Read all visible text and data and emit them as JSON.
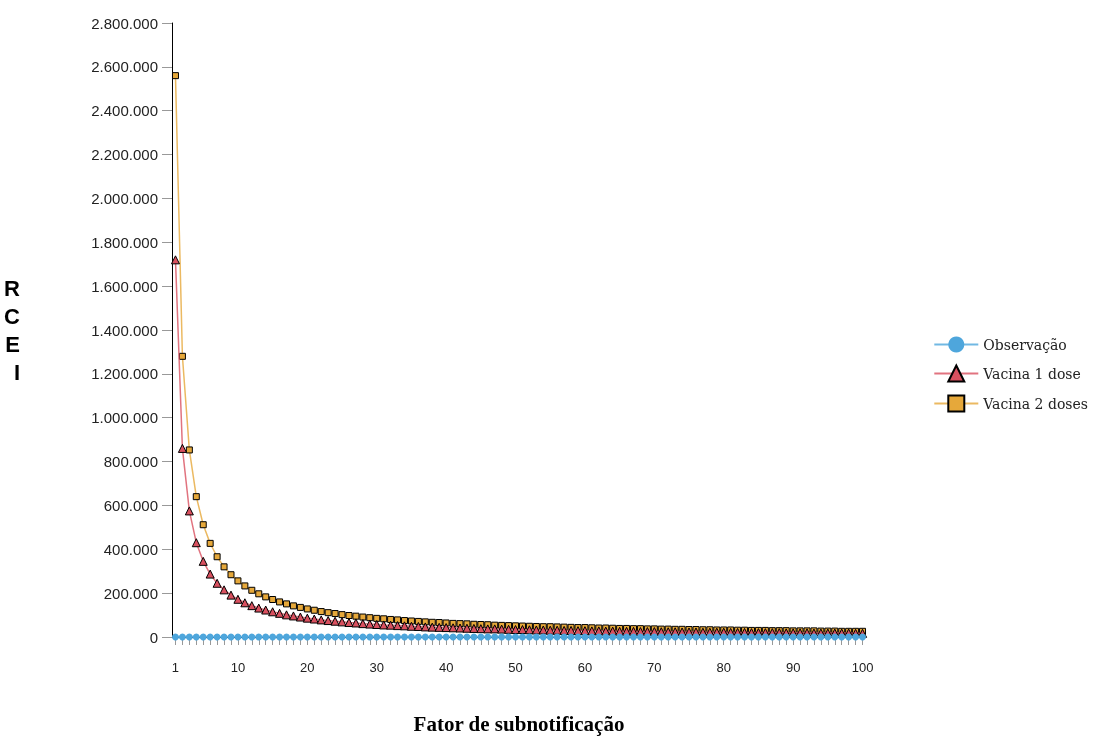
{
  "chart_data": {
    "type": "line",
    "xlabel": "Fator de subnotificação",
    "ylabel": "RCEI",
    "categories": [
      "1",
      null,
      null,
      null,
      null,
      null,
      null,
      null,
      null,
      "10",
      null,
      null,
      null,
      null,
      null,
      null,
      null,
      null,
      null,
      "20",
      null,
      null,
      null,
      null,
      null,
      null,
      null,
      null,
      null,
      "30",
      null,
      null,
      null,
      null,
      null,
      null,
      null,
      null,
      null,
      "40",
      null,
      null,
      null,
      null,
      null,
      null,
      null,
      null,
      null,
      "50",
      null,
      null,
      null,
      null,
      null,
      null,
      null,
      null,
      null,
      "60",
      null,
      null,
      null,
      null,
      null,
      null,
      null,
      null,
      null,
      "70",
      null,
      null,
      null,
      null,
      null,
      null,
      null,
      null,
      null,
      "80",
      null,
      null,
      null,
      null,
      null,
      null,
      null,
      null,
      null,
      "90",
      null,
      null,
      null,
      null,
      null,
      null,
      null,
      null,
      null,
      "100"
    ],
    "ylim": [
      0,
      2800000
    ],
    "yticks": [
      {
        "value": 0,
        "label": "0"
      },
      {
        "value": 200000,
        "label": "200.000"
      },
      {
        "value": 400000,
        "label": "400.000"
      },
      {
        "value": 600000,
        "label": "600.000"
      },
      {
        "value": 800000,
        "label": "800.000"
      },
      {
        "value": 1000000,
        "label": "1.000.000"
      },
      {
        "value": 1200000,
        "label": "1.200.000"
      },
      {
        "value": 1400000,
        "label": "1.400.000"
      },
      {
        "value": 1600000,
        "label": "1.600.000"
      },
      {
        "value": 1800000,
        "label": "1.800.000"
      },
      {
        "value": 2000000,
        "label": "2.000.000"
      },
      {
        "value": 2200000,
        "label": "2.200.000"
      },
      {
        "value": 2400000,
        "label": "2.400.000"
      },
      {
        "value": 2600000,
        "label": "2.600.000"
      },
      {
        "value": 2800000,
        "label": "2.800.000"
      }
    ],
    "grid": false,
    "legend": "right",
    "series": [
      {
        "name": "Observação",
        "color": "#4ea6dc",
        "marker": "circle",
        "values": [
          0,
          0,
          0,
          0,
          0,
          0,
          0,
          0,
          0,
          0,
          0,
          0,
          0,
          0,
          0,
          0,
          0,
          0,
          0,
          0,
          0,
          0,
          0,
          0,
          0,
          0,
          0,
          0,
          0,
          0,
          0,
          0,
          0,
          0,
          0,
          0,
          0,
          0,
          0,
          0,
          0,
          0,
          0,
          0,
          0,
          0,
          0,
          0,
          0,
          0,
          0,
          0,
          0,
          0,
          0,
          0,
          0,
          0,
          0,
          0,
          0,
          0,
          0,
          0,
          0,
          0,
          0,
          0,
          0,
          0,
          0,
          0,
          0,
          0,
          0,
          0,
          0,
          0,
          0,
          0,
          0,
          0,
          0,
          0,
          0,
          0,
          0,
          0,
          0,
          0,
          0,
          0,
          0,
          0,
          0,
          0,
          0,
          0,
          0,
          0
        ]
      },
      {
        "name": "Vacina 1 dose",
        "color": "#d9505f",
        "marker": "triangle",
        "values": [
          1720000,
          860000,
          575000,
          430000,
          345000,
          287000,
          245000,
          215000,
          191000,
          172000,
          156000,
          143000,
          132000,
          123000,
          115000,
          108000,
          101000,
          96000,
          91000,
          86000,
          82000,
          78000,
          75000,
          72000,
          69000,
          66000,
          64000,
          61000,
          59000,
          57000,
          55000,
          54000,
          52000,
          51000,
          49000,
          48000,
          46000,
          45000,
          44000,
          43000,
          42000,
          41000,
          40000,
          39000,
          38000,
          37000,
          37000,
          36000,
          35000,
          34000,
          34000,
          33000,
          32000,
          32000,
          31000,
          31000,
          30000,
          30000,
          29000,
          29000,
          28000,
          28000,
          27000,
          27000,
          26000,
          26000,
          26000,
          25000,
          25000,
          25000,
          24000,
          24000,
          24000,
          23000,
          23000,
          23000,
          22000,
          22000,
          22000,
          22000,
          21000,
          21000,
          21000,
          20000,
          20000,
          20000,
          20000,
          20000,
          19000,
          19000,
          19000,
          19000,
          18000,
          18000,
          18000,
          18000,
          18000,
          18000,
          17000,
          17000
        ]
      },
      {
        "name": "Vacina 2 doses",
        "color": "#e6a83a",
        "marker": "square",
        "values": [
          2560000,
          1280000,
          853000,
          640000,
          512000,
          427000,
          366000,
          320000,
          284000,
          256000,
          233000,
          213000,
          197000,
          183000,
          171000,
          160000,
          151000,
          142000,
          135000,
          128000,
          122000,
          116000,
          111000,
          107000,
          102000,
          98000,
          95000,
          91000,
          88000,
          85000,
          83000,
          80000,
          78000,
          75000,
          73000,
          71000,
          69000,
          67000,
          66000,
          64000,
          62000,
          61000,
          60000,
          58000,
          57000,
          56000,
          54000,
          53000,
          52000,
          51000,
          50000,
          49000,
          48000,
          47000,
          47000,
          46000,
          45000,
          44000,
          43000,
          43000,
          42000,
          41000,
          41000,
          40000,
          39000,
          39000,
          38000,
          38000,
          37000,
          37000,
          36000,
          36000,
          35000,
          35000,
          34000,
          34000,
          33000,
          33000,
          32000,
          32000,
          32000,
          31000,
          31000,
          30000,
          30000,
          30000,
          29000,
          29000,
          29000,
          28000,
          28000,
          28000,
          28000,
          27000,
          27000,
          27000,
          26000,
          26000,
          26000,
          26000
        ]
      }
    ]
  }
}
